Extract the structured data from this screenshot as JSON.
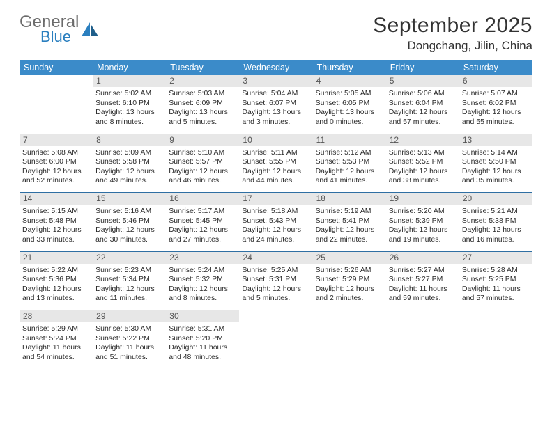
{
  "brand": {
    "word1": "General",
    "word2": "Blue",
    "color_gray": "#6b6b6b",
    "color_blue": "#2a7fbf"
  },
  "title": "September 2025",
  "location": "Dongchang, Jilin, China",
  "header_bg": "#3b8bc9",
  "row_sep_color": "#2f6fa3",
  "daynum_bg": "#e7e7e7",
  "days": [
    "Sunday",
    "Monday",
    "Tuesday",
    "Wednesday",
    "Thursday",
    "Friday",
    "Saturday"
  ],
  "weeks": [
    [
      null,
      {
        "n": "1",
        "sr": "5:02 AM",
        "ss": "6:10 PM",
        "dl": "13 hours and 8 minutes."
      },
      {
        "n": "2",
        "sr": "5:03 AM",
        "ss": "6:09 PM",
        "dl": "13 hours and 5 minutes."
      },
      {
        "n": "3",
        "sr": "5:04 AM",
        "ss": "6:07 PM",
        "dl": "13 hours and 3 minutes."
      },
      {
        "n": "4",
        "sr": "5:05 AM",
        "ss": "6:05 PM",
        "dl": "13 hours and 0 minutes."
      },
      {
        "n": "5",
        "sr": "5:06 AM",
        "ss": "6:04 PM",
        "dl": "12 hours and 57 minutes."
      },
      {
        "n": "6",
        "sr": "5:07 AM",
        "ss": "6:02 PM",
        "dl": "12 hours and 55 minutes."
      }
    ],
    [
      {
        "n": "7",
        "sr": "5:08 AM",
        "ss": "6:00 PM",
        "dl": "12 hours and 52 minutes."
      },
      {
        "n": "8",
        "sr": "5:09 AM",
        "ss": "5:58 PM",
        "dl": "12 hours and 49 minutes."
      },
      {
        "n": "9",
        "sr": "5:10 AM",
        "ss": "5:57 PM",
        "dl": "12 hours and 46 minutes."
      },
      {
        "n": "10",
        "sr": "5:11 AM",
        "ss": "5:55 PM",
        "dl": "12 hours and 44 minutes."
      },
      {
        "n": "11",
        "sr": "5:12 AM",
        "ss": "5:53 PM",
        "dl": "12 hours and 41 minutes."
      },
      {
        "n": "12",
        "sr": "5:13 AM",
        "ss": "5:52 PM",
        "dl": "12 hours and 38 minutes."
      },
      {
        "n": "13",
        "sr": "5:14 AM",
        "ss": "5:50 PM",
        "dl": "12 hours and 35 minutes."
      }
    ],
    [
      {
        "n": "14",
        "sr": "5:15 AM",
        "ss": "5:48 PM",
        "dl": "12 hours and 33 minutes."
      },
      {
        "n": "15",
        "sr": "5:16 AM",
        "ss": "5:46 PM",
        "dl": "12 hours and 30 minutes."
      },
      {
        "n": "16",
        "sr": "5:17 AM",
        "ss": "5:45 PM",
        "dl": "12 hours and 27 minutes."
      },
      {
        "n": "17",
        "sr": "5:18 AM",
        "ss": "5:43 PM",
        "dl": "12 hours and 24 minutes."
      },
      {
        "n": "18",
        "sr": "5:19 AM",
        "ss": "5:41 PM",
        "dl": "12 hours and 22 minutes."
      },
      {
        "n": "19",
        "sr": "5:20 AM",
        "ss": "5:39 PM",
        "dl": "12 hours and 19 minutes."
      },
      {
        "n": "20",
        "sr": "5:21 AM",
        "ss": "5:38 PM",
        "dl": "12 hours and 16 minutes."
      }
    ],
    [
      {
        "n": "21",
        "sr": "5:22 AM",
        "ss": "5:36 PM",
        "dl": "12 hours and 13 minutes."
      },
      {
        "n": "22",
        "sr": "5:23 AM",
        "ss": "5:34 PM",
        "dl": "12 hours and 11 minutes."
      },
      {
        "n": "23",
        "sr": "5:24 AM",
        "ss": "5:32 PM",
        "dl": "12 hours and 8 minutes."
      },
      {
        "n": "24",
        "sr": "5:25 AM",
        "ss": "5:31 PM",
        "dl": "12 hours and 5 minutes."
      },
      {
        "n": "25",
        "sr": "5:26 AM",
        "ss": "5:29 PM",
        "dl": "12 hours and 2 minutes."
      },
      {
        "n": "26",
        "sr": "5:27 AM",
        "ss": "5:27 PM",
        "dl": "11 hours and 59 minutes."
      },
      {
        "n": "27",
        "sr": "5:28 AM",
        "ss": "5:25 PM",
        "dl": "11 hours and 57 minutes."
      }
    ],
    [
      {
        "n": "28",
        "sr": "5:29 AM",
        "ss": "5:24 PM",
        "dl": "11 hours and 54 minutes."
      },
      {
        "n": "29",
        "sr": "5:30 AM",
        "ss": "5:22 PM",
        "dl": "11 hours and 51 minutes."
      },
      {
        "n": "30",
        "sr": "5:31 AM",
        "ss": "5:20 PM",
        "dl": "11 hours and 48 minutes."
      },
      null,
      null,
      null,
      null
    ]
  ],
  "labels": {
    "sunrise": "Sunrise:",
    "sunset": "Sunset:",
    "daylight": "Daylight:"
  }
}
